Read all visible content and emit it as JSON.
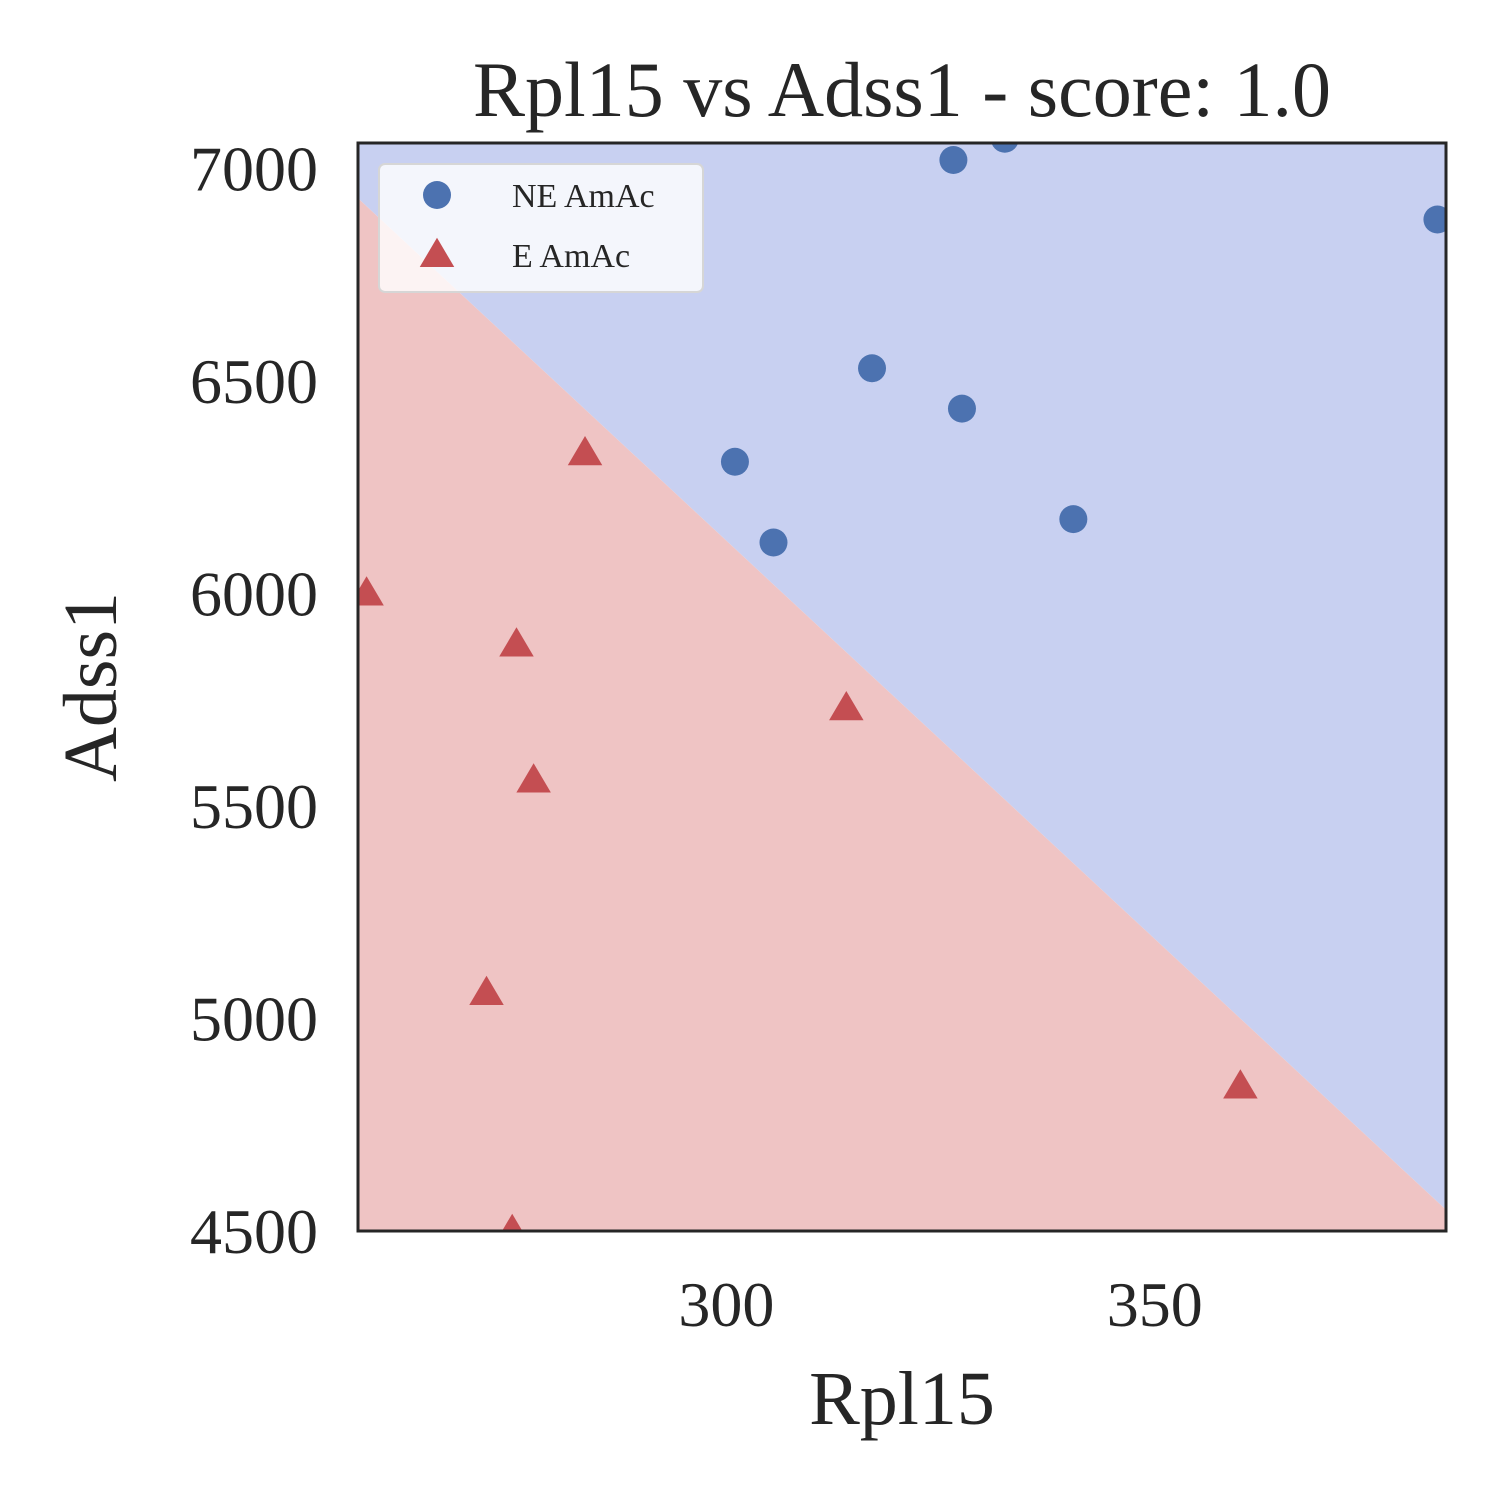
{
  "chart_data": {
    "type": "scatter",
    "title": "Rpl15 vs Adss1 - score: 1.0",
    "xlabel": "Rpl15",
    "ylabel": "Adss1",
    "xlim": [
      257,
      384
    ],
    "ylim": [
      4500,
      7060
    ],
    "xticks": [
      300,
      350
    ],
    "yticks": [
      4500,
      5000,
      5500,
      6000,
      6500,
      7000
    ],
    "grid": false,
    "legend_position": "top-left",
    "decision_boundary": {
      "points": [
        [
          257,
          6930
        ],
        [
          384,
          4550
        ]
      ]
    },
    "regions": {
      "upper_color": "#c8d0f1",
      "lower_color": "#efc4c4"
    },
    "series": [
      {
        "name": "NE AmAc",
        "marker": "circle",
        "color": "#4c72b0",
        "points": [
          [
            301,
            6310
          ],
          [
            305.5,
            6120
          ],
          [
            317,
            6530
          ],
          [
            326.5,
            7020
          ],
          [
            327.5,
            6435
          ],
          [
            332.5,
            7070
          ],
          [
            340.5,
            6175
          ],
          [
            383,
            6880
          ]
        ]
      },
      {
        "name": "E AmAc",
        "marker": "triangle",
        "color": "#c44e52",
        "points": [
          [
            258,
            6000
          ],
          [
            275.5,
            5880
          ],
          [
            277.5,
            5560
          ],
          [
            283.5,
            6330
          ],
          [
            272,
            5060
          ],
          [
            275,
            4500
          ],
          [
            314,
            5730
          ],
          [
            360,
            4840
          ]
        ]
      }
    ]
  }
}
